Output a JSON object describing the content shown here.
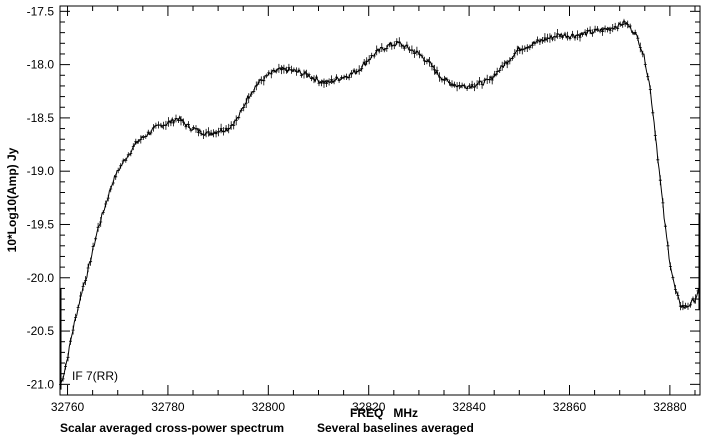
{
  "chart_data": {
    "type": "line",
    "xlabel": "FREQ   MHz",
    "ylabel": "10*Log10(Amp) Jy",
    "annotation": "IF 7(RR)",
    "subtitle_left": "Scalar averaged cross-power spectrum",
    "subtitle_right": "Several baselines averaged",
    "xlim": [
      32758.5,
      32886
    ],
    "ylim": [
      -21.1,
      -17.45
    ],
    "x_ticks": [
      32760,
      32780,
      32800,
      32820,
      32840,
      32860,
      32880
    ],
    "x_tick_labels": [
      "32760",
      "32780",
      "32800",
      "32820",
      "32840",
      "32860",
      "32880"
    ],
    "y_ticks": [
      -17.5,
      -18.0,
      -18.5,
      -19.0,
      -19.5,
      -20.0,
      -20.5,
      -21.0
    ],
    "y_tick_labels": [
      "-17.5",
      "-18.0",
      "-18.5",
      "-19.0",
      "-19.5",
      "-20.0",
      "-20.5",
      "-21.0"
    ],
    "grid": false,
    "line_color": "#000000",
    "marker": "plus-with-error-bars",
    "series": [
      {
        "x": [
          32758.6,
          32759.0,
          32760.0,
          32761.0,
          32762.0,
          32763.0,
          32764.0,
          32765.0,
          32766.0,
          32767.0,
          32768.0,
          32769.0,
          32770.0,
          32772.0,
          32774.0,
          32776.0,
          32778.0,
          32780.0,
          32782.0,
          32784.0,
          32786.0,
          32788.0,
          32790.0,
          32792.0,
          32794.0,
          32796.0,
          32798.0,
          32800.0,
          32802.0,
          32804.0,
          32806.0,
          32808.0,
          32810.0,
          32812.0,
          32814.0,
          32816.0,
          32818.0,
          32820.0,
          32822.0,
          32824.0,
          32826.0,
          32828.0,
          32830.0,
          32832.0,
          32834.0,
          32836.0,
          32838.0,
          32840.0,
          32842.0,
          32844.0,
          32846.0,
          32848.0,
          32850.0,
          32852.0,
          32854.0,
          32856.0,
          32858.0,
          32860.0,
          32862.0,
          32864.0,
          32866.0,
          32868.0,
          32870.0,
          32871.0,
          32872.0,
          32873.0,
          32874.0,
          32875.0,
          32876.0,
          32877.0,
          32878.0,
          32879.0,
          32880.0,
          32881.0,
          32882.0,
          32883.0,
          32884.0,
          32885.0,
          32886.0
        ],
        "y": [
          -21.0,
          -20.95,
          -20.75,
          -20.5,
          -20.3,
          -20.1,
          -19.95,
          -19.75,
          -19.55,
          -19.4,
          -19.25,
          -19.1,
          -19.0,
          -18.85,
          -18.72,
          -18.65,
          -18.58,
          -18.55,
          -18.5,
          -18.58,
          -18.62,
          -18.65,
          -18.62,
          -18.6,
          -18.5,
          -18.3,
          -18.17,
          -18.1,
          -18.05,
          -18.05,
          -18.07,
          -18.1,
          -18.15,
          -18.17,
          -18.13,
          -18.1,
          -18.05,
          -17.95,
          -17.87,
          -17.82,
          -17.8,
          -17.85,
          -17.9,
          -17.98,
          -18.1,
          -18.17,
          -18.2,
          -18.2,
          -18.18,
          -18.15,
          -18.05,
          -17.95,
          -17.85,
          -17.82,
          -17.78,
          -17.75,
          -17.72,
          -17.73,
          -17.72,
          -17.7,
          -17.68,
          -17.66,
          -17.63,
          -17.6,
          -17.65,
          -17.7,
          -17.8,
          -17.95,
          -18.2,
          -18.6,
          -19.05,
          -19.5,
          -19.85,
          -20.1,
          -20.25,
          -20.28,
          -20.25,
          -20.2,
          -20.1
        ]
      }
    ]
  }
}
